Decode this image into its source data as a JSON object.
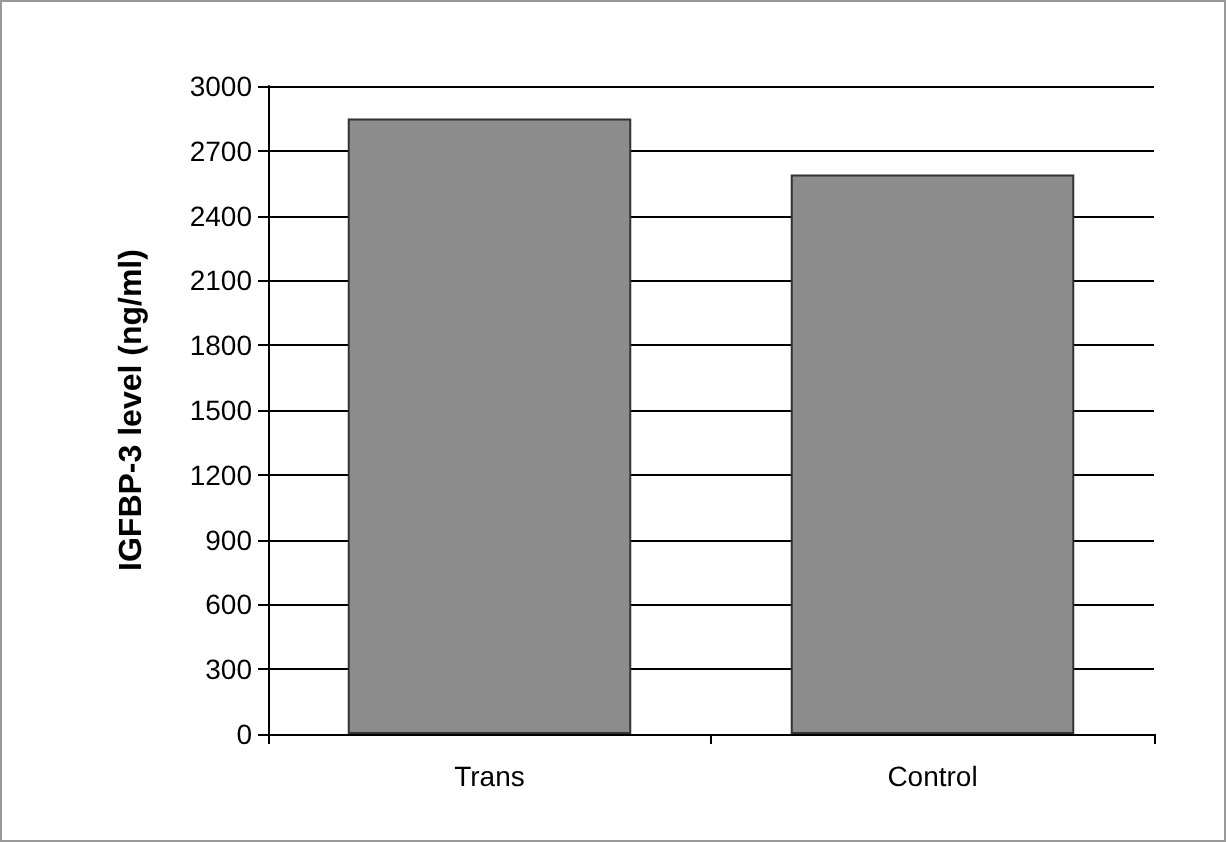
{
  "chart_data": {
    "type": "bar",
    "ylabel": "IGFBP-3 level (ng/ml)",
    "categories": [
      "Trans",
      "Control"
    ],
    "values": [
      2850,
      2590
    ],
    "color": "#8c8c8c",
    "ylim": [
      0,
      3000
    ],
    "yticks": [
      0,
      300,
      600,
      900,
      1200,
      1500,
      1800,
      2100,
      2400,
      2700,
      3000
    ],
    "grid": "y"
  }
}
